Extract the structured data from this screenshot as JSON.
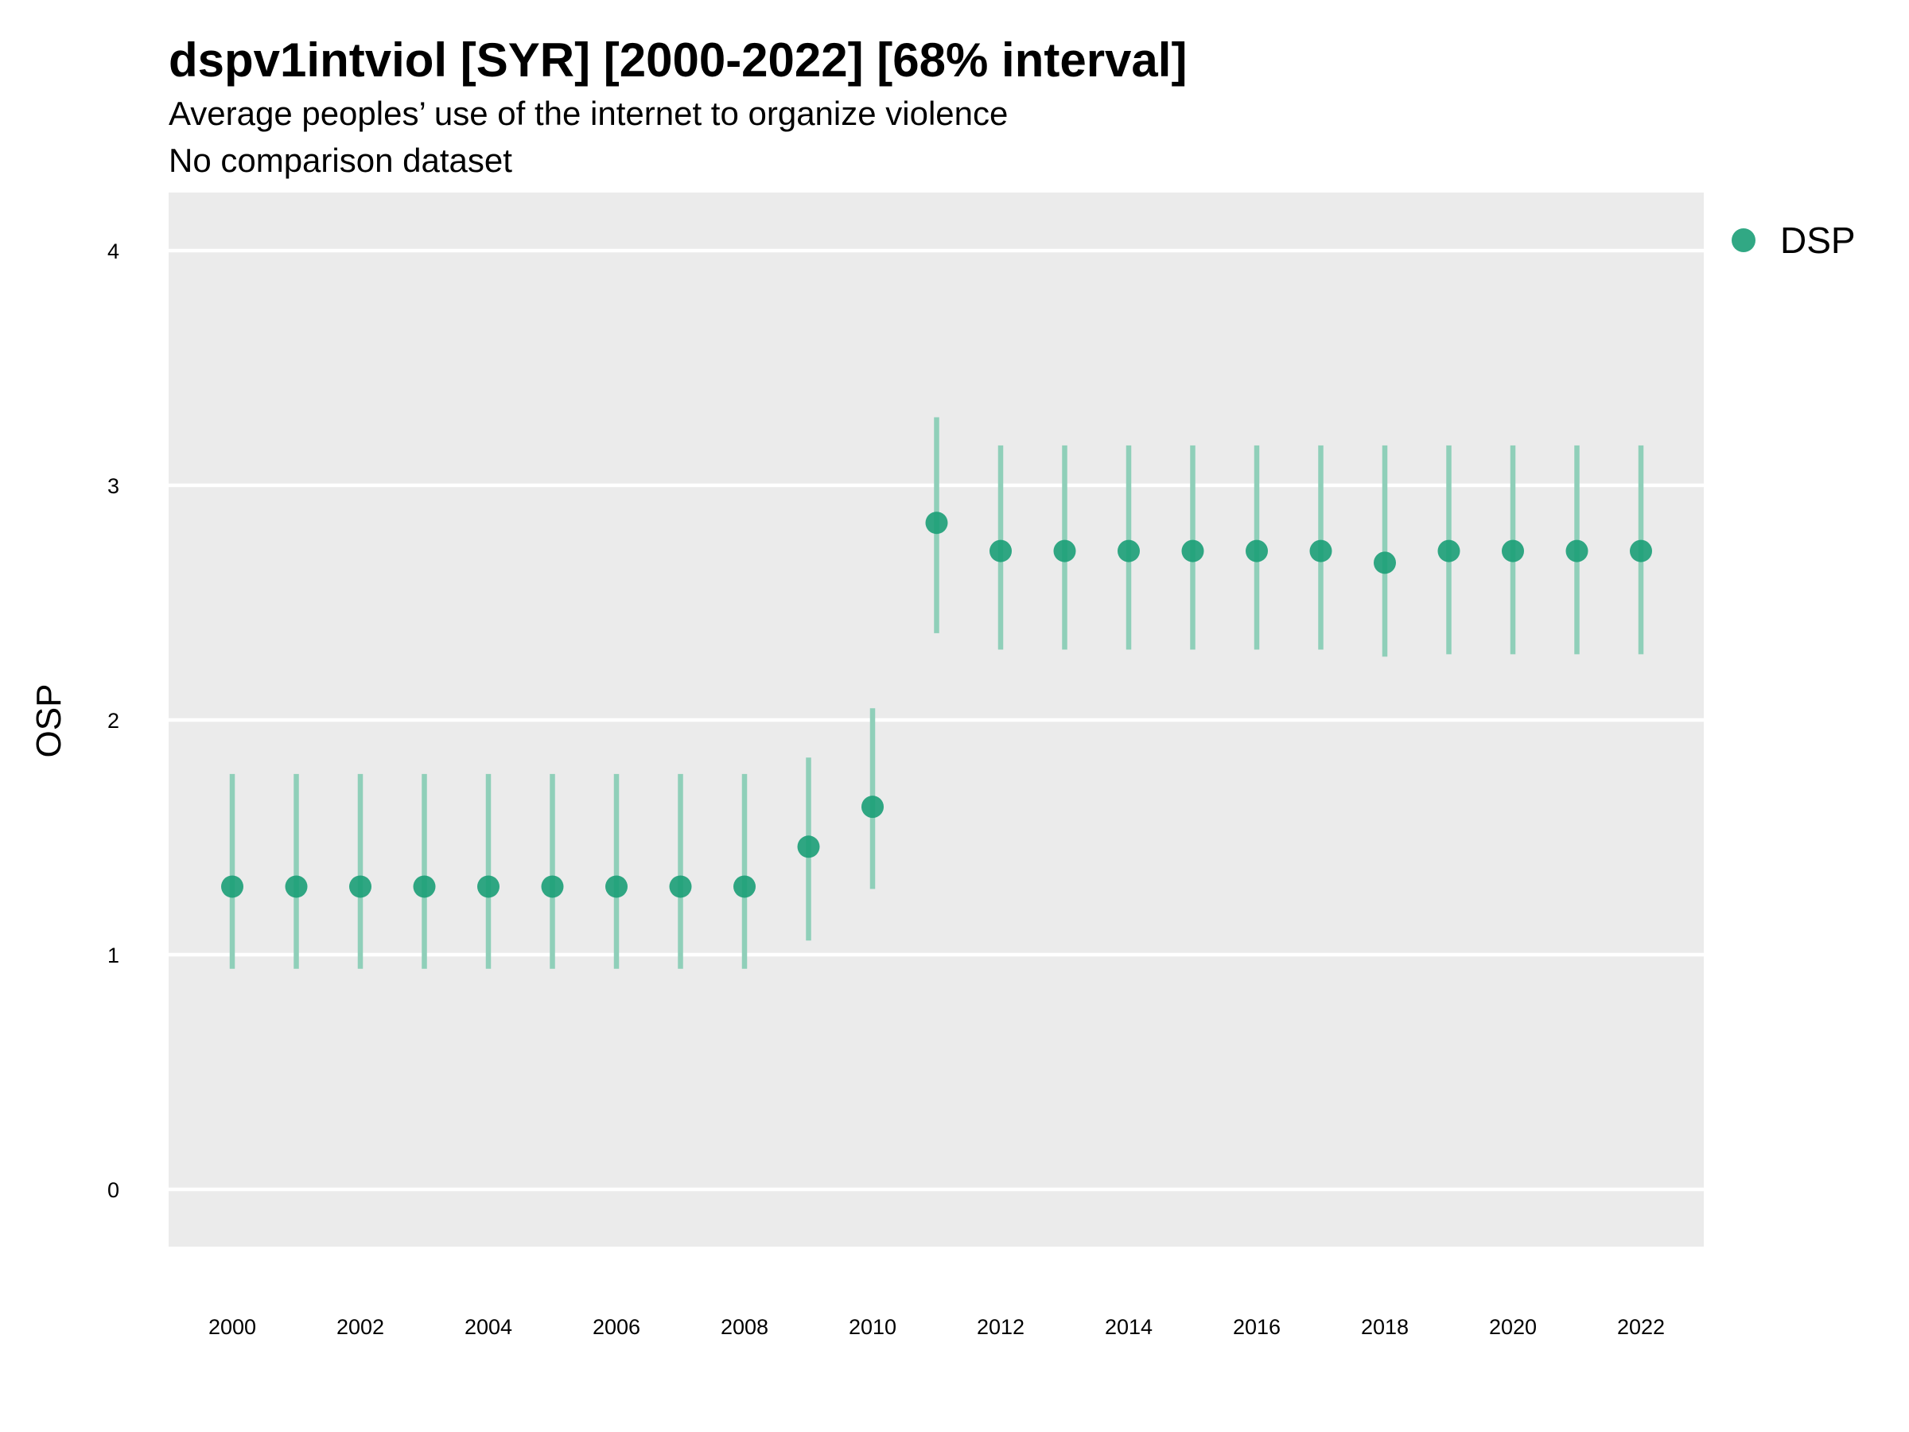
{
  "title": "dspv1intviol [SYR] [2000-2022] [68% interval]",
  "subtitle_line1": "Average peoples’ use of the internet to organize violence",
  "subtitle_line2": "No comparison dataset",
  "colors": {
    "panel_bg": "#EBEBEB",
    "gridline": "#FFFFFF",
    "point": "#1B9E77",
    "interval": "#8FCFB9"
  },
  "chart_data": {
    "type": "scatter",
    "title": "dspv1intviol [SYR] [2000-2022] [68% interval]",
    "subtitle": "Average peoples’ use of the internet to organize violence\nNo comparison dataset",
    "xlabel": "",
    "ylabel": "OSP",
    "ylim": [
      -0.25,
      4.25
    ],
    "xlim": [
      1999,
      2023
    ],
    "grid": true,
    "legend_position": "right",
    "x_ticks": [
      2000,
      2002,
      2004,
      2006,
      2008,
      2010,
      2012,
      2014,
      2016,
      2018,
      2020,
      2022
    ],
    "y_ticks": [
      0,
      1,
      2,
      3,
      4
    ],
    "series": [
      {
        "name": "DSP",
        "x": [
          2000,
          2001,
          2002,
          2003,
          2004,
          2005,
          2006,
          2007,
          2008,
          2009,
          2010,
          2011,
          2012,
          2013,
          2014,
          2015,
          2016,
          2017,
          2018,
          2019,
          2020,
          2021,
          2022
        ],
        "y": [
          1.29,
          1.29,
          1.29,
          1.29,
          1.29,
          1.29,
          1.29,
          1.29,
          1.29,
          1.46,
          1.63,
          2.84,
          2.72,
          2.72,
          2.72,
          2.72,
          2.72,
          2.72,
          2.67,
          2.72,
          2.72,
          2.72,
          2.72
        ],
        "lower": [
          0.94,
          0.94,
          0.94,
          0.94,
          0.94,
          0.94,
          0.94,
          0.94,
          0.94,
          1.06,
          1.28,
          2.37,
          2.3,
          2.3,
          2.3,
          2.3,
          2.3,
          2.3,
          2.27,
          2.28,
          2.28,
          2.28,
          2.28
        ],
        "upper": [
          1.77,
          1.77,
          1.77,
          1.77,
          1.77,
          1.77,
          1.77,
          1.77,
          1.77,
          1.84,
          2.05,
          3.29,
          3.17,
          3.17,
          3.17,
          3.17,
          3.17,
          3.17,
          3.17,
          3.17,
          3.17,
          3.17,
          3.17
        ]
      }
    ]
  }
}
